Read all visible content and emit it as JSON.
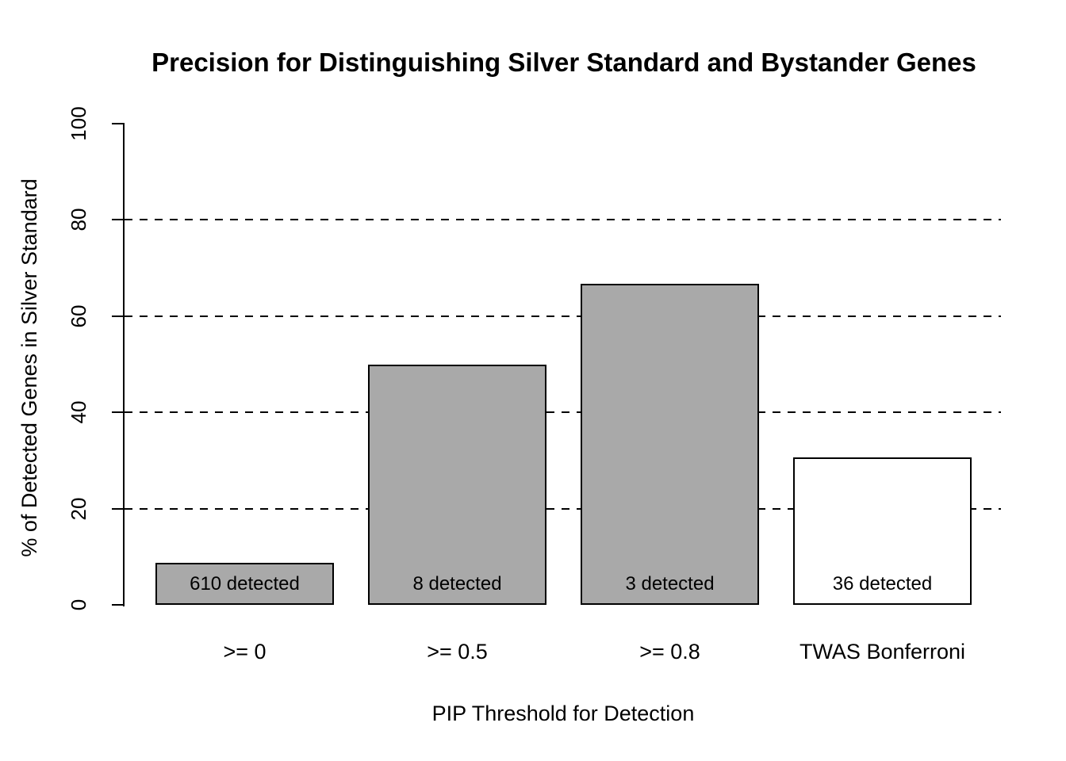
{
  "figure": {
    "background_color": "#ffffff",
    "text_color": "#000000"
  },
  "chart_data": {
    "type": "bar",
    "title": "Precision for Distinguishing Silver Standard and Bystander Genes",
    "xlabel": "PIP Threshold for Detection",
    "ylabel": "% of Detected Genes in Silver Standard",
    "categories": [
      ">= 0",
      ">= 0.5",
      ">= 0.8",
      "TWAS Bonferroni"
    ],
    "values": [
      8.7,
      50,
      66.7,
      30.6
    ],
    "bar_labels": [
      "610 detected",
      "8 detected",
      "3 detected",
      "36 detected"
    ],
    "bar_fill_colors": [
      "#a9a9a9",
      "#a9a9a9",
      "#a9a9a9",
      "#ffffff"
    ],
    "bar_border_color": "#000000",
    "ylim": [
      0,
      100
    ],
    "yticks": [
      "0",
      "20",
      "40",
      "60",
      "80",
      "100"
    ],
    "ytick_values": [
      0,
      20,
      40,
      60,
      80,
      100
    ],
    "gridlines_y": [
      20,
      40,
      60,
      80
    ],
    "gridline_style": "dashed",
    "grid": true,
    "legend": false
  }
}
